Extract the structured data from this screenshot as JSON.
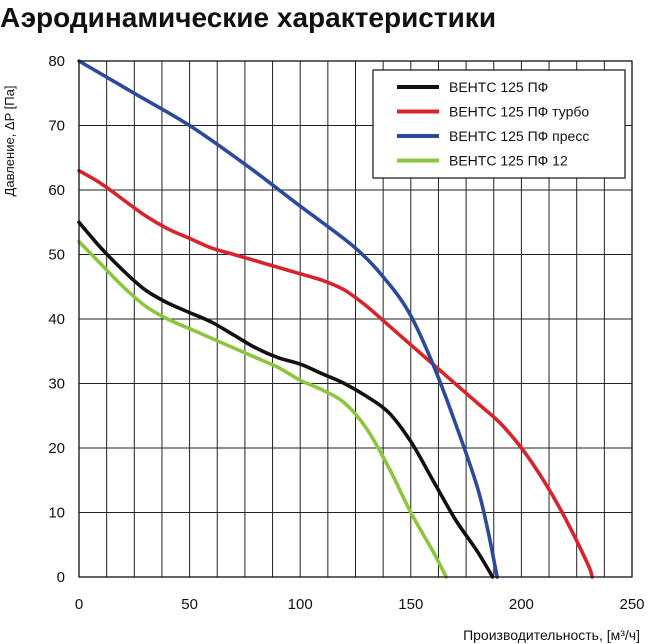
{
  "chart_data": {
    "type": "line",
    "title": "Аэродинамические характеристики",
    "xlabel": "Производительность, [м³/ч]",
    "ylabel": "Давление, ΔP [Па]",
    "xlim": [
      0,
      250
    ],
    "ylim": [
      0,
      80
    ],
    "xticks": [
      0,
      50,
      100,
      150,
      200,
      250
    ],
    "yticks": [
      0,
      10,
      20,
      30,
      40,
      50,
      60,
      70,
      80
    ],
    "grid": true,
    "legend_position": "top-right",
    "series": [
      {
        "name": "ВЕНТС 125 ПФ",
        "color": "#111111",
        "points": [
          [
            0,
            55
          ],
          [
            10,
            51
          ],
          [
            20,
            47.5
          ],
          [
            30,
            44.5
          ],
          [
            40,
            42.5
          ],
          [
            50,
            41
          ],
          [
            60,
            39.5
          ],
          [
            70,
            37.5
          ],
          [
            80,
            35.5
          ],
          [
            90,
            34
          ],
          [
            100,
            33
          ],
          [
            110,
            31.5
          ],
          [
            120,
            30
          ],
          [
            130,
            28
          ],
          [
            140,
            25.5
          ],
          [
            150,
            21
          ],
          [
            160,
            15
          ],
          [
            170,
            9
          ],
          [
            180,
            4
          ],
          [
            187,
            0
          ]
        ]
      },
      {
        "name": "ВЕНТС 125 ПФ турбо",
        "color": "#d8232a",
        "points": [
          [
            0,
            63
          ],
          [
            10,
            61
          ],
          [
            20,
            58.5
          ],
          [
            30,
            56
          ],
          [
            40,
            54
          ],
          [
            50,
            52.5
          ],
          [
            60,
            51
          ],
          [
            70,
            50
          ],
          [
            80,
            49
          ],
          [
            90,
            48
          ],
          [
            100,
            47
          ],
          [
            110,
            46
          ],
          [
            120,
            44.5
          ],
          [
            130,
            42
          ],
          [
            140,
            39
          ],
          [
            150,
            36
          ],
          [
            160,
            33
          ],
          [
            170,
            30
          ],
          [
            180,
            27
          ],
          [
            190,
            24
          ],
          [
            200,
            20
          ],
          [
            210,
            15
          ],
          [
            220,
            9
          ],
          [
            230,
            2
          ],
          [
            232,
            0
          ]
        ]
      },
      {
        "name": "ВЕНТС 125 ПФ пресс",
        "color": "#2c4a9a",
        "points": [
          [
            0,
            80
          ],
          [
            25,
            75
          ],
          [
            50,
            70
          ],
          [
            75,
            64
          ],
          [
            100,
            57.5
          ],
          [
            125,
            51
          ],
          [
            140,
            45.5
          ],
          [
            150,
            40.5
          ],
          [
            160,
            33
          ],
          [
            170,
            24
          ],
          [
            180,
            14
          ],
          [
            185,
            7
          ],
          [
            189,
            0
          ]
        ]
      },
      {
        "name": "ВЕНТС 125 ПФ 12",
        "color": "#8cc63f",
        "points": [
          [
            0,
            52
          ],
          [
            10,
            48.5
          ],
          [
            20,
            45
          ],
          [
            30,
            42
          ],
          [
            40,
            40
          ],
          [
            50,
            38.5
          ],
          [
            60,
            37
          ],
          [
            70,
            35.5
          ],
          [
            80,
            34
          ],
          [
            90,
            32.5
          ],
          [
            100,
            30.5
          ],
          [
            110,
            29
          ],
          [
            120,
            27
          ],
          [
            130,
            23
          ],
          [
            140,
            17
          ],
          [
            150,
            10
          ],
          [
            160,
            4
          ],
          [
            166,
            0
          ]
        ]
      }
    ]
  }
}
